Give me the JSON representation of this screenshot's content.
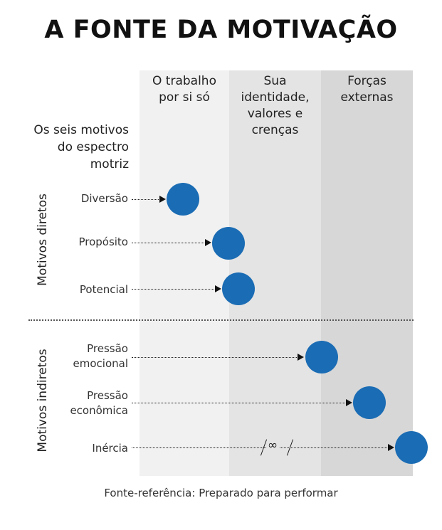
{
  "title": "A FONTE DA MOTIVAÇÃO",
  "columns": [
    {
      "label_lines": [
        "O trabalho",
        "por si só"
      ]
    },
    {
      "label_lines": [
        "Sua",
        "identidade,",
        "valores e",
        "crenças"
      ]
    },
    {
      "label_lines": [
        "Forças",
        "externas"
      ]
    }
  ],
  "spectrum_label_lines": [
    "Os seis motivos",
    "do espectro",
    "motriz"
  ],
  "groups": {
    "direct": "Motivos diretos",
    "indirect": "Motivos indiretos"
  },
  "motives": [
    {
      "label_lines": [
        "Diversão"
      ],
      "group": "direct"
    },
    {
      "label_lines": [
        "Propósito"
      ],
      "group": "direct"
    },
    {
      "label_lines": [
        "Potencial"
      ],
      "group": "direct"
    },
    {
      "label_lines": [
        "Pressão",
        "emocional"
      ],
      "group": "indirect"
    },
    {
      "label_lines": [
        "Pressão",
        "econômica"
      ],
      "group": "indirect"
    },
    {
      "label_lines": [
        "Inércia"
      ],
      "group": "indirect"
    }
  ],
  "break_symbol": "∞",
  "footnote": "Fonte-referência: Preparado para performar",
  "colors": {
    "circle": "#1a6cb4",
    "column_light": "#f1f1f1",
    "column_mid": "#e4e4e4",
    "column_dark": "#d7d7d7"
  }
}
